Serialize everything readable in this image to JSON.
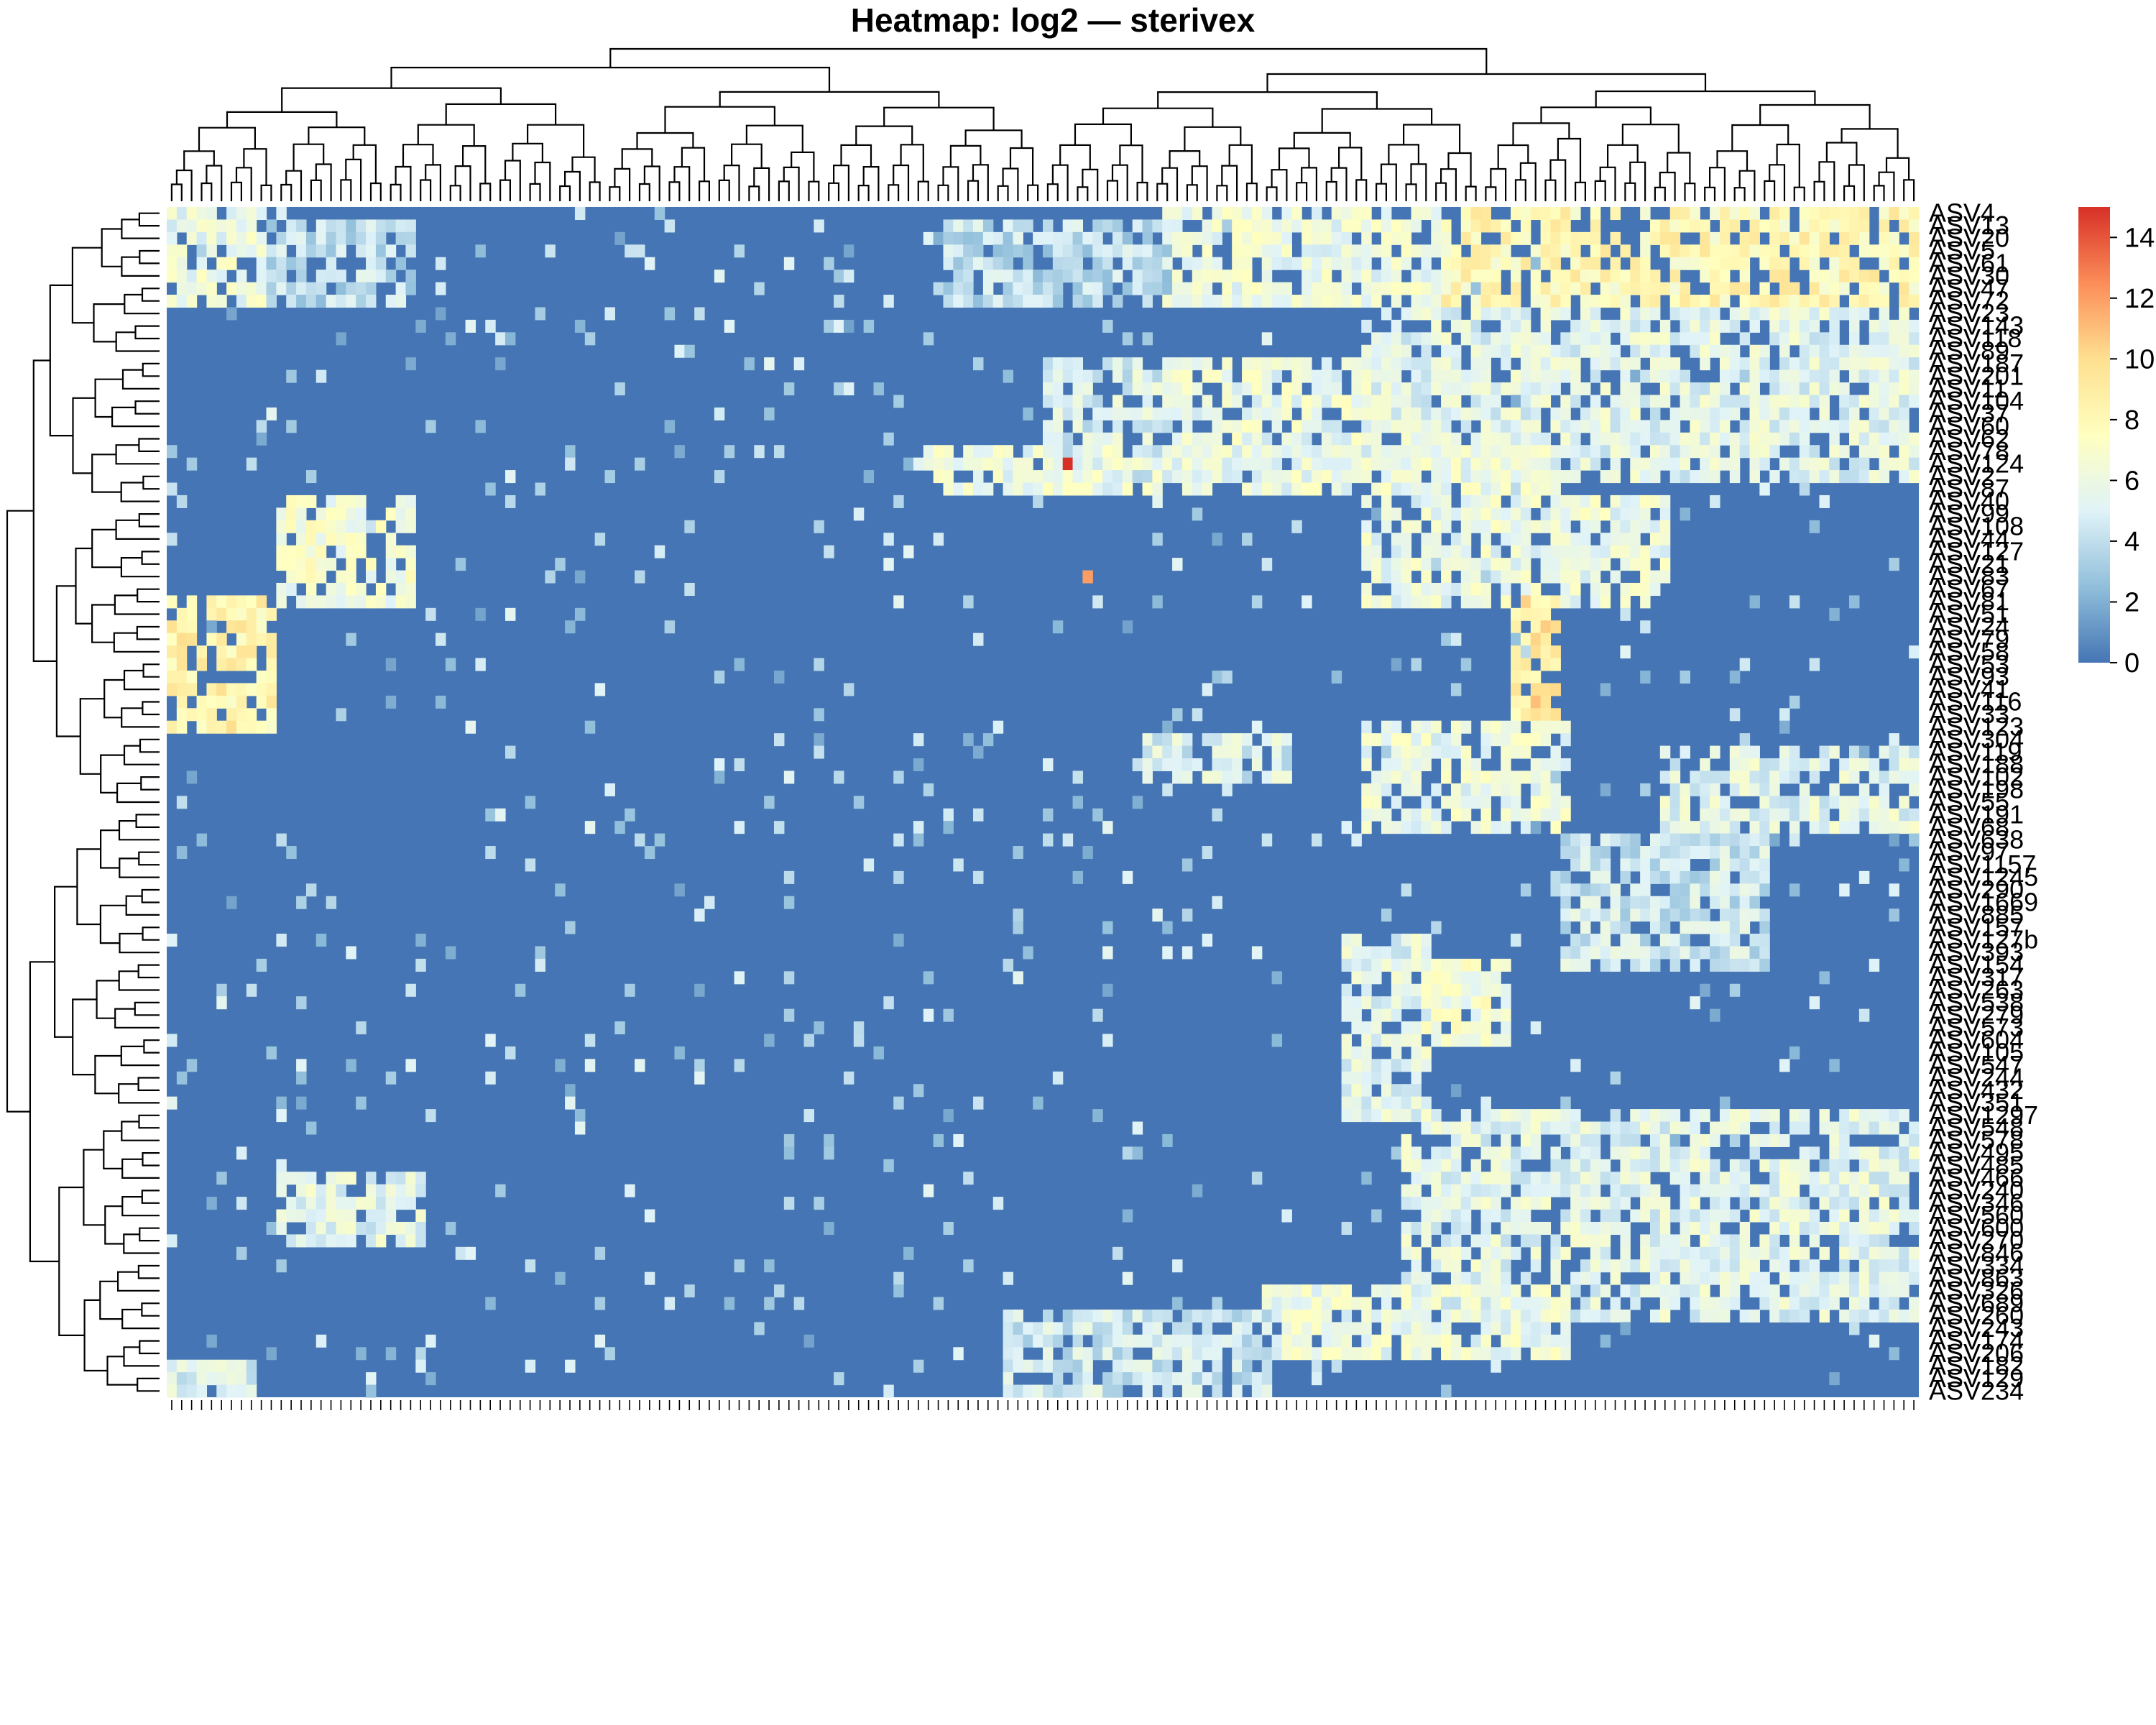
{
  "chart_data": {
    "type": "heatmap",
    "title": "Heatmap: log2 — sterivex",
    "n_columns": 176,
    "row_labels": [
      "ASV4",
      "ASV13",
      "ASV20",
      "ASV5",
      "ASV61",
      "ASV30",
      "ASV47",
      "ASV72",
      "ASV23",
      "ASV143",
      "ASV118",
      "ASV89",
      "ASV187",
      "ASV201",
      "ASV11",
      "ASV104",
      "ASV37",
      "ASV60",
      "ASV62",
      "ASV78",
      "ASV124",
      "ASV2",
      "ASV87",
      "ASV40",
      "ASV99",
      "ASV108",
      "ASV44",
      "ASV127",
      "ASV21",
      "ASV83",
      "ASV67",
      "ASV81",
      "ASV51",
      "ASV24",
      "ASV79",
      "ASV58",
      "ASV53",
      "ASV93",
      "ASV41",
      "ASV116",
      "ASV33",
      "ASV123",
      "ASV304",
      "ASV119",
      "ASV188",
      "ASV102",
      "ASV198",
      "ASV55",
      "ASV191",
      "ASV68",
      "ASV638",
      "ASV97",
      "ASV1157",
      "ASV1245",
      "ASV290",
      "ASV1669",
      "ASV885",
      "ASV157",
      "ASV127b",
      "ASV393",
      "ASV154",
      "ASV317",
      "ASV263",
      "ASV538",
      "ASV279",
      "ASV573",
      "ASV604",
      "ASV105",
      "ASV547",
      "ASV244",
      "ASV432",
      "ASV351",
      "ASV1297",
      "ASV548",
      "ASV578",
      "ASV495",
      "ASV485",
      "ASV466",
      "ASV240",
      "ASV346",
      "ASV560",
      "ASV600",
      "ASV270",
      "ASV846",
      "ASV334",
      "ASV863",
      "ASV326",
      "ASV689",
      "ASV260",
      "ASV243",
      "ASV174",
      "ASV206",
      "ASV182",
      "ASV129",
      "ASV234"
    ],
    "col_labels_visible": "",
    "color_scale": {
      "min": 0,
      "max": 15,
      "colors": [
        "#4575b4",
        "#91bfdb",
        "#e0f3f8",
        "#ffffbf",
        "#fee090",
        "#fc8d59",
        "#d73027"
      ]
    },
    "legend_ticks": [
      0,
      2,
      4,
      6,
      8,
      10,
      12,
      14
    ],
    "legend_placement": "right",
    "row_dendrogram": true,
    "col_dendrogram": true,
    "blocks": [
      {
        "rows": [
          0,
          7
        ],
        "cols": [
          128,
          175
        ],
        "value": 8
      },
      {
        "rows": [
          0,
          7
        ],
        "cols": [
          100,
          127
        ],
        "value": 6
      },
      {
        "rows": [
          0,
          7
        ],
        "cols": [
          0,
          10
        ],
        "value": 6
      },
      {
        "rows": [
          1,
          7
        ],
        "cols": [
          10,
          24
        ],
        "value": 4
      },
      {
        "rows": [
          1,
          7
        ],
        "cols": [
          78,
          100
        ],
        "value": 4
      },
      {
        "rows": [
          8,
          21
        ],
        "cols": [
          120,
          175
        ],
        "value": 5.5
      },
      {
        "rows": [
          12,
          21
        ],
        "cols": [
          100,
          120
        ],
        "value": 6
      },
      {
        "rows": [
          12,
          21
        ],
        "cols": [
          88,
          100
        ],
        "value": 5
      },
      {
        "rows": [
          19,
          22
        ],
        "cols": [
          76,
          140
        ],
        "value": 6
      },
      {
        "rows": [
          23,
          31
        ],
        "cols": [
          11,
          24
        ],
        "value": 6.5
      },
      {
        "rows": [
          23,
          31
        ],
        "cols": [
          120,
          150
        ],
        "value": 6
      },
      {
        "rows": [
          31,
          41
        ],
        "cols": [
          0,
          10
        ],
        "value": 8.5
      },
      {
        "rows": [
          31,
          41
        ],
        "cols": [
          135,
          139
        ],
        "value": 9
      },
      {
        "rows": [
          41,
          49
        ],
        "cols": [
          120,
          140
        ],
        "value": 6
      },
      {
        "rows": [
          42,
          45
        ],
        "cols": [
          98,
          112
        ],
        "value": 5
      },
      {
        "rows": [
          43,
          49
        ],
        "cols": [
          150,
          175
        ],
        "value": 5.5
      },
      {
        "rows": [
          50,
          60
        ],
        "cols": [
          140,
          160
        ],
        "value": 4.5
      },
      {
        "rows": [
          58,
          72
        ],
        "cols": [
          118,
          126
        ],
        "value": 5.5
      },
      {
        "rows": [
          60,
          66
        ],
        "cols": [
          126,
          134
        ],
        "value": 6.5
      },
      {
        "rows": [
          72,
          88
        ],
        "cols": [
          124,
          175
        ],
        "value": 5.5
      },
      {
        "rows": [
          77,
          82
        ],
        "cols": [
          11,
          25
        ],
        "value": 5.5
      },
      {
        "rows": [
          86,
          91
        ],
        "cols": [
          110,
          140
        ],
        "value": 6
      },
      {
        "rows": [
          88,
          94
        ],
        "cols": [
          84,
          110
        ],
        "value": 4.5
      },
      {
        "rows": [
          92,
          94
        ],
        "cols": [
          0,
          8
        ],
        "value": 5
      }
    ],
    "hot_cells": [
      {
        "row": 20,
        "col": 90,
        "value": 15
      },
      {
        "row": 29,
        "col": 92,
        "value": 12
      },
      {
        "row": 39,
        "col": 137,
        "value": 11
      }
    ]
  }
}
